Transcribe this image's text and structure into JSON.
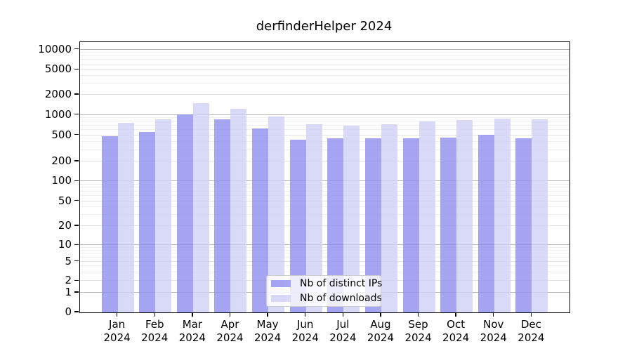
{
  "title": "derfinderHelper 2024",
  "colors": {
    "distinct_ips_base": "#8f8fed",
    "downloads_base": "#d0d0f6",
    "bar_alpha": 0.8,
    "grid_decade": "#b5b5b5",
    "grid_sub": "#e2e2e2",
    "grid_minor": "#efefef",
    "spine": "#000000"
  },
  "legend": {
    "items": [
      {
        "label": "Nb of distinct IPs",
        "swatch": "distinct-ips-swatch"
      },
      {
        "label": "Nb of downloads",
        "swatch": "downloads-swatch"
      }
    ]
  },
  "chart_data": {
    "type": "bar",
    "title": "derfinderHelper 2024",
    "categories": [
      "Jan",
      "Feb",
      "Mar",
      "Apr",
      "May",
      "Jun",
      "Jul",
      "Aug",
      "Sep",
      "Oct",
      "Nov",
      "Dec"
    ],
    "year_label": "2024",
    "series": [
      {
        "name": "Nb of distinct IPs",
        "values": [
          480,
          555,
          1020,
          855,
          630,
          430,
          450,
          450,
          445,
          465,
          510,
          450
        ]
      },
      {
        "name": "Nb of downloads",
        "values": [
          760,
          870,
          1500,
          1230,
          950,
          735,
          700,
          720,
          800,
          840,
          890,
          860
        ]
      }
    ],
    "yticks": [
      0,
      1,
      2,
      5,
      10,
      20,
      50,
      100,
      200,
      500,
      1000,
      2000,
      5000,
      10000
    ],
    "ylim": [
      0,
      13000
    ],
    "yscale": "log-like (linear 0-1, log above)",
    "grid": true,
    "legend_position": "lower center"
  }
}
